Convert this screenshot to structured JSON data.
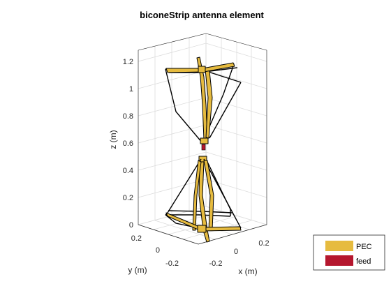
{
  "title": "biconeStrip antenna element",
  "axes": {
    "z_label": "z (m)",
    "x_label": "x (m)",
    "y_label": "y (m)",
    "z_ticks": [
      "0",
      "0.2",
      "0.4",
      "0.6",
      "0.8",
      "1",
      "1.2"
    ],
    "x_ticks": [
      "-0.2",
      "0",
      "0.2"
    ],
    "y_ticks": [
      "-0.2",
      "0",
      "0.2"
    ]
  },
  "legend": {
    "placement": "bottom-right",
    "items": [
      {
        "label": "PEC",
        "color": "#e6bb3f"
      },
      {
        "label": "feed",
        "color": "#b5172e"
      }
    ]
  },
  "colors": {
    "pec": "#e6bb3f",
    "feed": "#b5172e",
    "outline": "#000000"
  }
}
